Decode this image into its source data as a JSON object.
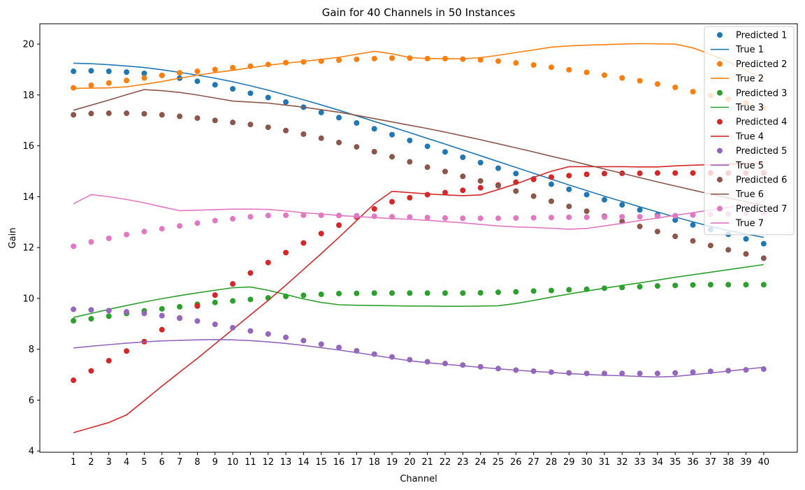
{
  "chart_data": {
    "type": "line",
    "title": "Gain for 40 Channels in 50 Instances",
    "xlabel": "Channel",
    "ylabel": "Gain",
    "x": [
      1,
      2,
      3,
      4,
      5,
      6,
      7,
      8,
      9,
      10,
      11,
      12,
      13,
      14,
      15,
      16,
      17,
      18,
      19,
      20,
      21,
      22,
      23,
      24,
      25,
      26,
      27,
      28,
      29,
      30,
      31,
      32,
      33,
      34,
      35,
      36,
      37,
      38,
      39,
      40
    ],
    "xlim": [
      -0.9,
      41.9
    ],
    "ylim": [
      3.95,
      20.8
    ],
    "yticks": [
      4,
      6,
      8,
      10,
      12,
      14,
      16,
      18,
      20
    ],
    "grid": false,
    "legend_position": "top-right",
    "series": [
      {
        "name": "Predicted 1",
        "kind": "scatter",
        "color": "#1f77b4",
        "values": [
          18.93,
          18.95,
          18.93,
          18.9,
          18.85,
          18.77,
          18.66,
          18.54,
          18.4,
          18.24,
          18.07,
          17.9,
          17.72,
          17.52,
          17.31,
          17.11,
          16.9,
          16.67,
          16.44,
          16.21,
          15.98,
          15.76,
          15.55,
          15.34,
          15.12,
          14.91,
          14.7,
          14.49,
          14.29,
          14.08,
          13.88,
          13.68,
          13.48,
          13.28,
          13.08,
          12.89,
          12.71,
          12.52,
          12.34,
          12.15
        ]
      },
      {
        "name": "True 1",
        "kind": "line",
        "color": "#1f77b4",
        "values": [
          19.25,
          19.23,
          19.19,
          19.14,
          19.08,
          18.99,
          18.89,
          18.78,
          18.66,
          18.52,
          18.36,
          18.19,
          18.0,
          17.81,
          17.61,
          17.4,
          17.18,
          16.96,
          16.74,
          16.52,
          16.29,
          16.07,
          15.84,
          15.61,
          15.38,
          15.15,
          14.92,
          14.69,
          14.46,
          14.24,
          14.02,
          13.81,
          13.6,
          13.4,
          13.2,
          13.01,
          12.83,
          12.67,
          12.53,
          12.4
        ]
      },
      {
        "name": "Predicted 2",
        "kind": "scatter",
        "color": "#ff7f0e",
        "values": [
          18.28,
          18.38,
          18.47,
          18.57,
          18.67,
          18.77,
          18.87,
          18.93,
          19.0,
          19.07,
          19.13,
          19.2,
          19.27,
          19.3,
          19.33,
          19.37,
          19.4,
          19.43,
          19.45,
          19.45,
          19.43,
          19.43,
          19.41,
          19.38,
          19.33,
          19.26,
          19.18,
          19.09,
          18.99,
          18.89,
          18.78,
          18.67,
          18.56,
          18.43,
          18.3,
          18.13,
          17.98,
          17.84,
          17.68,
          17.5
        ]
      },
      {
        "name": "True 2",
        "kind": "line",
        "color": "#ff7f0e",
        "values": [
          18.26,
          18.27,
          18.28,
          18.32,
          18.42,
          18.53,
          18.66,
          18.78,
          18.88,
          18.97,
          19.07,
          19.17,
          19.25,
          19.32,
          19.4,
          19.48,
          19.6,
          19.72,
          19.62,
          19.47,
          19.43,
          19.43,
          19.42,
          19.47,
          19.56,
          19.67,
          19.77,
          19.88,
          19.93,
          19.96,
          19.98,
          20.0,
          20.02,
          20.01,
          20.0,
          19.85,
          19.6,
          19.3,
          18.97,
          18.62
        ]
      },
      {
        "name": "Predicted 3",
        "kind": "scatter",
        "color": "#2ca02c",
        "values": [
          9.12,
          9.2,
          9.3,
          9.41,
          9.51,
          9.59,
          9.67,
          9.77,
          9.84,
          9.9,
          9.96,
          10.02,
          10.08,
          10.12,
          10.16,
          10.19,
          10.2,
          10.21,
          10.21,
          10.21,
          10.21,
          10.21,
          10.21,
          10.22,
          10.24,
          10.26,
          10.29,
          10.31,
          10.34,
          10.36,
          10.4,
          10.43,
          10.46,
          10.49,
          10.51,
          10.53,
          10.54,
          10.54,
          10.54,
          10.54
        ]
      },
      {
        "name": "True 3",
        "kind": "line",
        "color": "#2ca02c",
        "values": [
          9.25,
          9.41,
          9.57,
          9.72,
          9.86,
          9.99,
          10.11,
          10.22,
          10.32,
          10.42,
          10.45,
          10.32,
          10.15,
          9.98,
          9.84,
          9.75,
          9.73,
          9.72,
          9.71,
          9.7,
          9.7,
          9.69,
          9.69,
          9.7,
          9.71,
          9.8,
          9.92,
          10.05,
          10.17,
          10.29,
          10.4,
          10.51,
          10.61,
          10.72,
          10.83,
          10.93,
          11.03,
          11.13,
          11.23,
          11.33
        ]
      },
      {
        "name": "Predicted 4",
        "kind": "scatter",
        "color": "#d62728",
        "values": [
          6.78,
          7.15,
          7.55,
          7.93,
          8.3,
          8.77,
          9.23,
          9.7,
          10.13,
          10.57,
          11.0,
          11.41,
          11.8,
          12.18,
          12.55,
          12.88,
          13.2,
          13.52,
          13.8,
          13.96,
          14.08,
          14.16,
          14.25,
          14.35,
          14.46,
          14.57,
          14.68,
          14.77,
          14.83,
          14.88,
          14.91,
          14.92,
          14.92,
          14.93,
          14.93,
          14.93,
          14.93,
          14.93,
          14.93,
          14.93
        ]
      },
      {
        "name": "True 4",
        "kind": "line",
        "color": "#d62728",
        "values": [
          4.72,
          4.92,
          5.12,
          5.42,
          5.98,
          6.55,
          7.1,
          7.64,
          8.21,
          8.78,
          9.35,
          9.92,
          10.52,
          11.14,
          11.76,
          12.4,
          13.06,
          13.72,
          14.21,
          14.16,
          14.11,
          14.07,
          14.04,
          14.07,
          14.28,
          14.5,
          14.76,
          15.0,
          15.18,
          15.18,
          15.18,
          15.18,
          15.17,
          15.17,
          15.21,
          15.24,
          15.26,
          15.28,
          15.3,
          15.32
        ]
      },
      {
        "name": "Predicted 5",
        "kind": "scatter",
        "color": "#9467bd",
        "values": [
          9.57,
          9.55,
          9.52,
          9.47,
          9.41,
          9.32,
          9.22,
          9.11,
          8.98,
          8.85,
          8.72,
          8.6,
          8.47,
          8.34,
          8.2,
          8.07,
          7.94,
          7.81,
          7.7,
          7.59,
          7.51,
          7.44,
          7.38,
          7.31,
          7.24,
          7.18,
          7.14,
          7.1,
          7.07,
          7.05,
          7.05,
          7.05,
          7.05,
          7.05,
          7.07,
          7.1,
          7.13,
          7.16,
          7.19,
          7.22
        ]
      },
      {
        "name": "True 5",
        "kind": "line",
        "color": "#9467bd",
        "values": [
          8.05,
          8.12,
          8.18,
          8.24,
          8.29,
          8.33,
          8.35,
          8.37,
          8.38,
          8.37,
          8.34,
          8.29,
          8.23,
          8.15,
          8.06,
          7.97,
          7.87,
          7.76,
          7.65,
          7.55,
          7.47,
          7.41,
          7.35,
          7.29,
          7.23,
          7.18,
          7.13,
          7.09,
          7.04,
          7.01,
          6.98,
          6.96,
          6.93,
          6.91,
          6.93,
          7.0,
          7.07,
          7.14,
          7.22,
          7.29
        ]
      },
      {
        "name": "Predicted 6",
        "kind": "scatter",
        "color": "#8c564b",
        "values": [
          17.22,
          17.27,
          17.28,
          17.28,
          17.26,
          17.22,
          17.16,
          17.09,
          17.0,
          16.92,
          16.84,
          16.73,
          16.6,
          16.46,
          16.3,
          16.13,
          15.96,
          15.77,
          15.57,
          15.37,
          15.16,
          14.99,
          14.8,
          14.62,
          14.43,
          14.22,
          14.02,
          13.82,
          13.62,
          13.43,
          13.23,
          13.03,
          12.83,
          12.63,
          12.44,
          12.26,
          12.08,
          11.91,
          11.75,
          11.58
        ]
      },
      {
        "name": "True 6",
        "kind": "line",
        "color": "#8c564b",
        "values": [
          17.4,
          17.6,
          17.8,
          18.01,
          18.21,
          18.17,
          18.1,
          18.0,
          17.88,
          17.76,
          17.72,
          17.68,
          17.6,
          17.52,
          17.42,
          17.32,
          17.2,
          17.07,
          16.94,
          16.81,
          16.68,
          16.54,
          16.39,
          16.24,
          16.08,
          15.92,
          15.76,
          15.59,
          15.43,
          15.26,
          15.09,
          14.92,
          14.75,
          14.58,
          14.42,
          14.26,
          14.1,
          13.95,
          13.8,
          13.66
        ]
      },
      {
        "name": "Predicted 7",
        "kind": "scatter",
        "color": "#e377c2",
        "values": [
          12.05,
          12.22,
          12.36,
          12.51,
          12.63,
          12.74,
          12.85,
          12.96,
          13.06,
          13.13,
          13.21,
          13.26,
          13.27,
          13.27,
          13.27,
          13.26,
          13.25,
          13.23,
          13.21,
          13.2,
          13.18,
          13.16,
          13.15,
          13.15,
          13.15,
          13.16,
          13.17,
          13.18,
          13.19,
          13.19,
          13.2,
          13.21,
          13.21,
          13.23,
          13.25,
          13.28,
          13.3,
          13.32,
          13.34,
          13.36
        ]
      },
      {
        "name": "True 7",
        "kind": "line",
        "color": "#e377c2",
        "values": [
          13.72,
          14.08,
          14.0,
          13.89,
          13.76,
          13.6,
          13.45,
          13.47,
          13.49,
          13.51,
          13.51,
          13.5,
          13.44,
          13.37,
          13.32,
          13.26,
          13.22,
          13.18,
          13.14,
          13.11,
          13.07,
          13.02,
          12.97,
          12.91,
          12.85,
          12.81,
          12.79,
          12.76,
          12.72,
          12.75,
          12.85,
          12.95,
          13.06,
          13.16,
          13.27,
          13.37,
          13.48,
          13.58,
          13.69,
          13.79
        ]
      }
    ]
  }
}
